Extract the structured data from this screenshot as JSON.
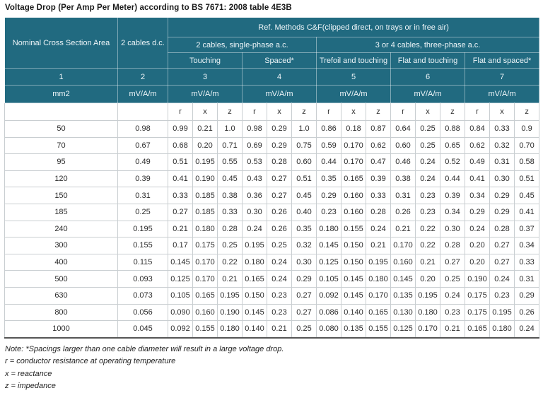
{
  "title": "Voltage Drop (Per Amp Per Meter) according to BS 7671: 2008 table 4E3B",
  "colors": {
    "header_bg": "#216a80",
    "header_text": "#eef5f8",
    "body_border": "#c9ced1",
    "table_bottom_border": "#555555",
    "body_text": "#2b2b2b"
  },
  "table": {
    "header": {
      "col1": "Nominal Cross Section Area",
      "col2": "2 cables d.c.",
      "ref_methods": "Ref. Methods C&F(clipped direct, on trays or in free air)",
      "group_single_phase": "2 cables, single-phase a.c.",
      "group_three_phase": "3 or 4 cables, three-phase a.c.",
      "subgroups": [
        "Touching",
        "Spaced*",
        "Trefoil and touching",
        "Flat and touching",
        "Flat and spaced*"
      ],
      "column_numbers": [
        "1",
        "2",
        "3",
        "4",
        "5",
        "6",
        "7"
      ],
      "units": [
        "mm2",
        "mV/A/m",
        "mV/A/m",
        "mV/A/m",
        "mV/A/m",
        "mV/A/m",
        "mV/A/m"
      ],
      "rxz": [
        "r",
        "x",
        "z"
      ]
    },
    "rows": [
      {
        "size": "50",
        "dc": "0.98",
        "values": [
          "0.99",
          "0.21",
          "1.0",
          "0.98",
          "0.29",
          "1.0",
          "0.86",
          "0.18",
          "0.87",
          "0.64",
          "0.25",
          "0.88",
          "0.84",
          "0.33",
          "0.9"
        ]
      },
      {
        "size": "70",
        "dc": "0.67",
        "values": [
          "0.68",
          "0.20",
          "0.71",
          "0.69",
          "0.29",
          "0.75",
          "0.59",
          "0.170",
          "0.62",
          "0.60",
          "0.25",
          "0.65",
          "0.62",
          "0.32",
          "0.70"
        ]
      },
      {
        "size": "95",
        "dc": "0.49",
        "values": [
          "0.51",
          "0.195",
          "0.55",
          "0.53",
          "0.28",
          "0.60",
          "0.44",
          "0.170",
          "0.47",
          "0.46",
          "0.24",
          "0.52",
          "0.49",
          "0.31",
          "0.58"
        ]
      },
      {
        "size": "120",
        "dc": "0.39",
        "values": [
          "0.41",
          "0.190",
          "0.45",
          "0.43",
          "0.27",
          "0.51",
          "0.35",
          "0.165",
          "0.39",
          "0.38",
          "0.24",
          "0.44",
          "0.41",
          "0.30",
          "0.51"
        ]
      },
      {
        "size": "150",
        "dc": "0.31",
        "values": [
          "0.33",
          "0.185",
          "0.38",
          "0.36",
          "0.27",
          "0.45",
          "0.29",
          "0.160",
          "0.33",
          "0.31",
          "0.23",
          "0.39",
          "0.34",
          "0.29",
          "0.45"
        ]
      },
      {
        "size": "185",
        "dc": "0.25",
        "values": [
          "0.27",
          "0.185",
          "0.33",
          "0.30",
          "0.26",
          "0.40",
          "0.23",
          "0.160",
          "0.28",
          "0.26",
          "0.23",
          "0.34",
          "0.29",
          "0.29",
          "0.41"
        ]
      },
      {
        "size": "240",
        "dc": "0.195",
        "values": [
          "0.21",
          "0.180",
          "0.28",
          "0.24",
          "0.26",
          "0.35",
          "0.180",
          "0.155",
          "0.24",
          "0.21",
          "0.22",
          "0.30",
          "0.24",
          "0.28",
          "0.37"
        ]
      },
      {
        "size": "300",
        "dc": "0.155",
        "values": [
          "0.17",
          "0.175",
          "0.25",
          "0.195",
          "0.25",
          "0.32",
          "0.145",
          "0.150",
          "0.21",
          "0.170",
          "0.22",
          "0.28",
          "0.20",
          "0.27",
          "0.34"
        ]
      },
      {
        "size": "400",
        "dc": "0.115",
        "values": [
          "0.145",
          "0.170",
          "0.22",
          "0.180",
          "0.24",
          "0.30",
          "0.125",
          "0.150",
          "0.195",
          "0.160",
          "0.21",
          "0.27",
          "0.20",
          "0.27",
          "0.33"
        ]
      },
      {
        "size": "500",
        "dc": "0.093",
        "values": [
          "0.125",
          "0.170",
          "0.21",
          "0.165",
          "0.24",
          "0.29",
          "0.105",
          "0.145",
          "0.180",
          "0.145",
          "0.20",
          "0.25",
          "0.190",
          "0.24",
          "0.31"
        ]
      },
      {
        "size": "630",
        "dc": "0.073",
        "values": [
          "0.105",
          "0.165",
          "0.195",
          "0.150",
          "0.23",
          "0.27",
          "0.092",
          "0.145",
          "0.170",
          "0.135",
          "0.195",
          "0.24",
          "0.175",
          "0.23",
          "0.29"
        ]
      },
      {
        "size": "800",
        "dc": "0.056",
        "values": [
          "0.090",
          "0.160",
          "0.190",
          "0.145",
          "0.23",
          "0.27",
          "0.086",
          "0.140",
          "0.165",
          "0.130",
          "0.180",
          "0.23",
          "0.175",
          "0.195",
          "0.26"
        ]
      },
      {
        "size": "1000",
        "dc": "0.045",
        "values": [
          "0.092",
          "0.155",
          "0.180",
          "0.140",
          "0.21",
          "0.25",
          "0.080",
          "0.135",
          "0.155",
          "0.125",
          "0.170",
          "0.21",
          "0.165",
          "0.180",
          "0.24"
        ]
      }
    ]
  },
  "notes": [
    "Note: *Spacings larger than one cable diameter will result in a large voltage drop.",
    "r = conductor resistance at operating temperature",
    "x = reactance",
    "z = impedance"
  ]
}
